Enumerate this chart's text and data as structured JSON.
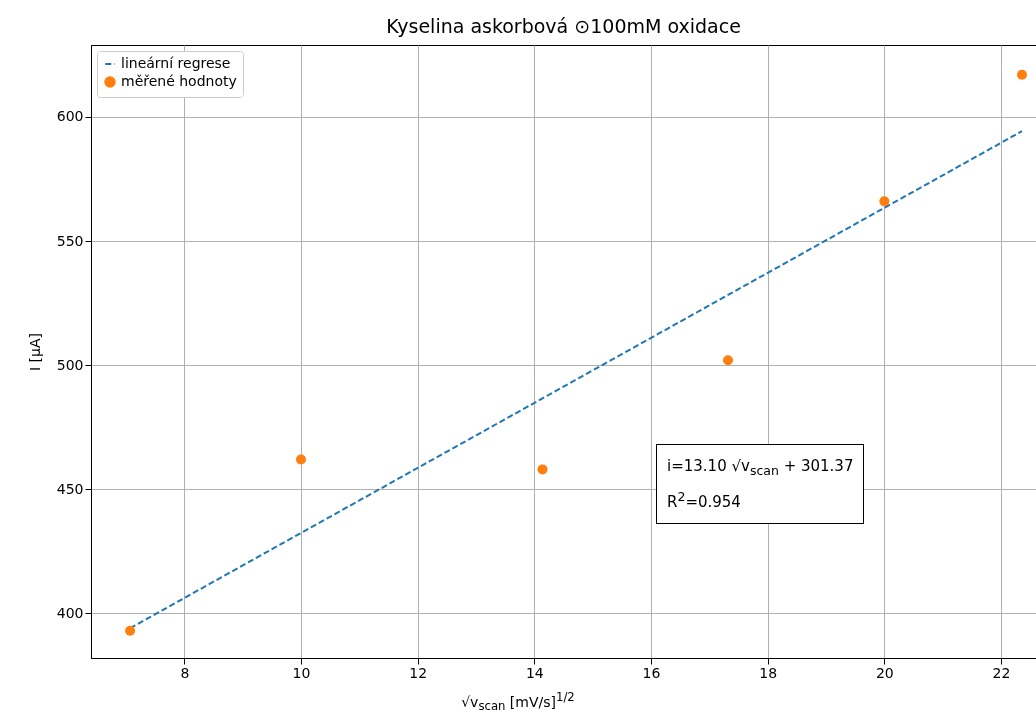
{
  "chart_data": {
    "type": "scatter",
    "title": "Kyselina askorbová ⊙100mM oxidace",
    "xlabel": "√v$_{scan}$   [mV/s]$^{1/2}$",
    "ylabel": "I [µA]",
    "xlim": [
      6.4,
      22.6
    ],
    "xticks": [
      8,
      10,
      12,
      14,
      16,
      18,
      20,
      22
    ],
    "ylim": [
      382,
      629
    ],
    "yticks": [
      400,
      450,
      500,
      550,
      600
    ],
    "grid": true,
    "legend": "top left",
    "series": [
      {
        "name": "lineární regrese",
        "type": "line",
        "line_style": "dashed",
        "color": "#1f77b4",
        "x": [
          7.07,
          22.36
        ],
        "values": [
          394.0,
          594.3
        ]
      },
      {
        "name": "měřené hodnoty",
        "marker": "circle",
        "color": "#ff7f0e",
        "x": [
          7.07,
          10,
          14.14,
          17.32,
          20,
          22.36
        ],
        "values": [
          393,
          462,
          458,
          502,
          566,
          617
        ]
      }
    ],
    "annotations": [
      "i=13.10 √v$_{scan}$ + 301.37",
      "R$^{2}$=0.954"
    ]
  }
}
